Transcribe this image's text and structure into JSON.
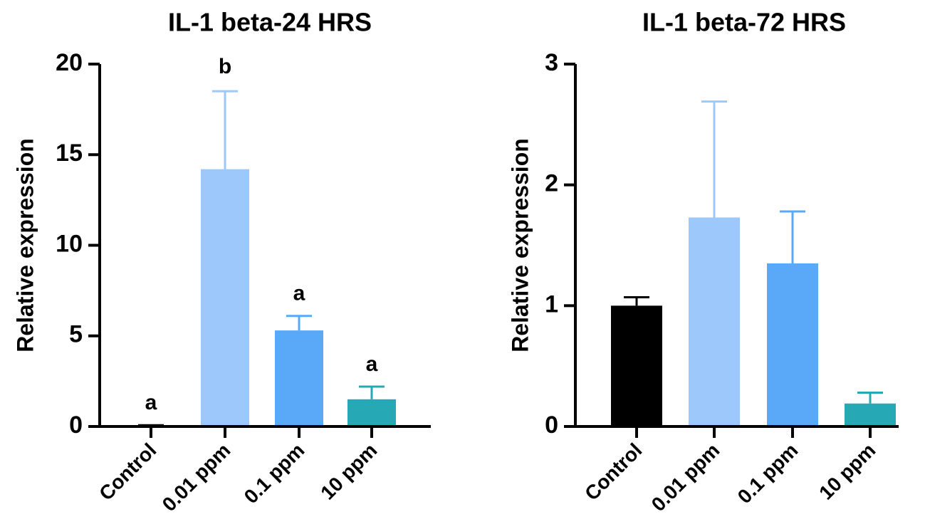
{
  "chart_data": [
    {
      "type": "bar",
      "title": "IL-1 beta-24 HRS",
      "ylabel": "Relative expression",
      "xlabel": "",
      "ylim": [
        0,
        20
      ],
      "yticks": [
        0,
        5,
        10,
        15,
        20
      ],
      "grid": false,
      "categories": [
        "Control",
        "0.01 ppm",
        "0.1 ppm",
        "10 ppm"
      ],
      "values": [
        0.05,
        14.2,
        5.3,
        1.5
      ],
      "errors": [
        0.02,
        4.3,
        0.8,
        0.7
      ],
      "annotations": [
        "a",
        "b",
        "a",
        "a"
      ],
      "colors": [
        "#000000",
        "#9DC8FC",
        "#5AA9F8",
        "#26A8B5"
      ]
    },
    {
      "type": "bar",
      "title": "IL-1 beta-72 HRS",
      "ylabel": "Relative expression",
      "xlabel": "",
      "ylim": [
        0,
        3
      ],
      "yticks": [
        0,
        1,
        2,
        3
      ],
      "grid": false,
      "categories": [
        "Control",
        "0.01 ppm",
        "0.1 ppm",
        "10 ppm"
      ],
      "values": [
        1.0,
        1.73,
        1.35,
        0.19
      ],
      "errors": [
        0.07,
        0.96,
        0.43,
        0.09
      ],
      "annotations": [
        "",
        "",
        "",
        ""
      ],
      "colors": [
        "#000000",
        "#9DC8FC",
        "#5AA9F8",
        "#26A8B5"
      ]
    }
  ]
}
